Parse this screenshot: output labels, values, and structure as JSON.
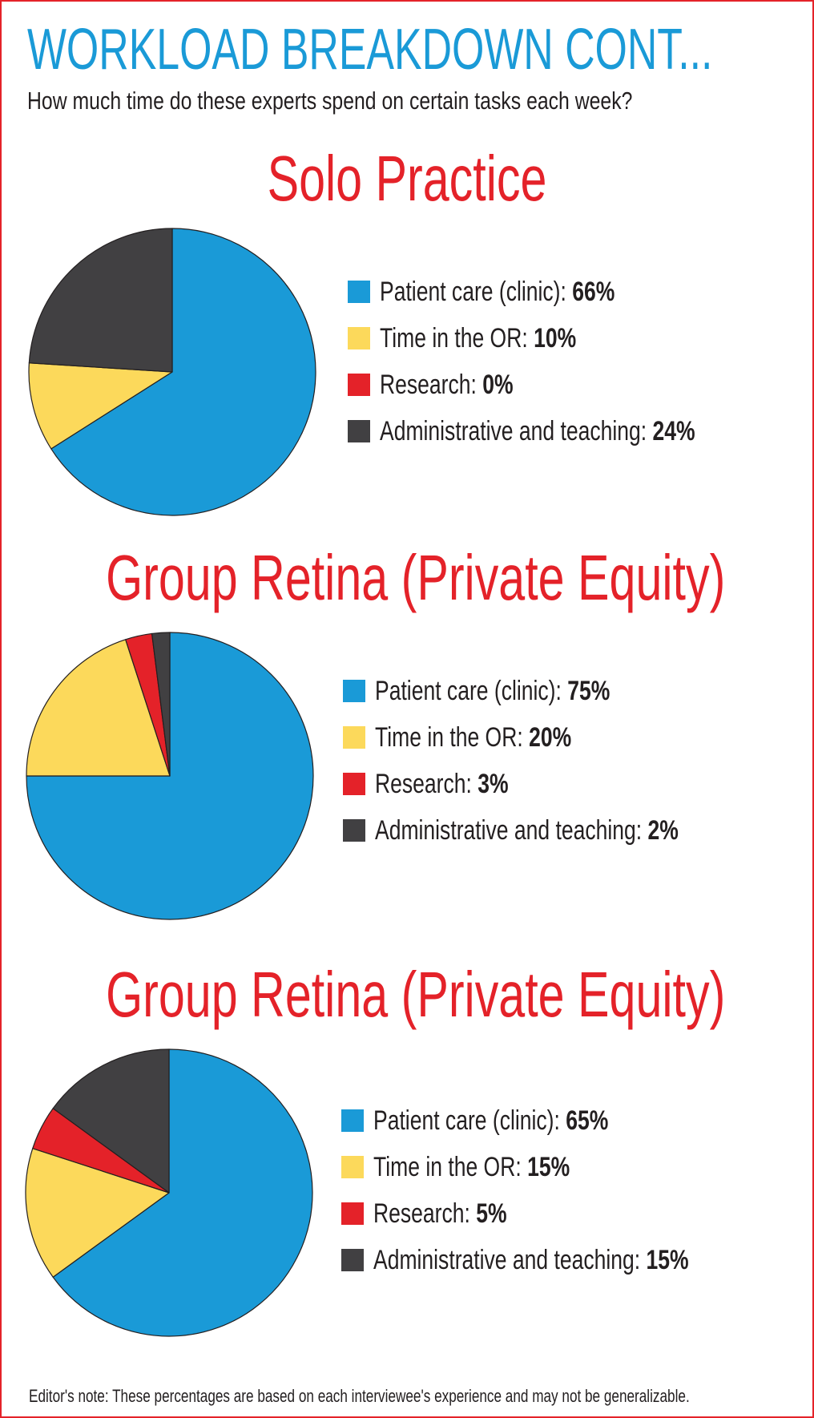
{
  "title": "WORKLOAD BREAKDOWN CONT...",
  "subtitle": "How much time do these experts spend on certain tasks each week?",
  "footnote": "Editor's note: These percentages are based on each interviewee's experience and may not be generalizable.",
  "colors": {
    "patient_care": "#1a9ad7",
    "or_time": "#fcd95b",
    "research": "#e42229",
    "admin_teaching": "#414042"
  },
  "chart_data": [
    {
      "type": "pie",
      "title": "Solo Practice",
      "series": [
        {
          "name": "Patient care (clinic):",
          "value_label": "66%",
          "value": 66,
          "color": "#1a9ad7"
        },
        {
          "name": "Time in the OR:",
          "value_label": "10%",
          "value": 10,
          "color": "#fcd95b"
        },
        {
          "name": "Research:",
          "value_label": "0%",
          "value": 0,
          "color": "#e42229"
        },
        {
          "name": "Administrative and teaching:",
          "value_label": "24%",
          "value": 24,
          "color": "#414042"
        }
      ]
    },
    {
      "type": "pie",
      "title": "Group Retina (Private Equity)",
      "series": [
        {
          "name": "Patient care (clinic):",
          "value_label": "75%",
          "value": 75,
          "color": "#1a9ad7"
        },
        {
          "name": "Time in the OR:",
          "value_label": "20%",
          "value": 20,
          "color": "#fcd95b"
        },
        {
          "name": "Research:",
          "value_label": "3%",
          "value": 3,
          "color": "#e42229"
        },
        {
          "name": "Administrative and teaching:",
          "value_label": "2%",
          "value": 2,
          "color": "#414042"
        }
      ]
    },
    {
      "type": "pie",
      "title": "Group Retina (Private Equity)",
      "series": [
        {
          "name": "Patient care (clinic):",
          "value_label": "65%",
          "value": 65,
          "color": "#1a9ad7"
        },
        {
          "name": "Time in the OR:",
          "value_label": "15%",
          "value": 15,
          "color": "#fcd95b"
        },
        {
          "name": "Research:",
          "value_label": "5%",
          "value": 5,
          "color": "#e42229"
        },
        {
          "name": "Administrative and teaching:",
          "value_label": "15%",
          "value": 15,
          "color": "#414042"
        }
      ]
    }
  ]
}
